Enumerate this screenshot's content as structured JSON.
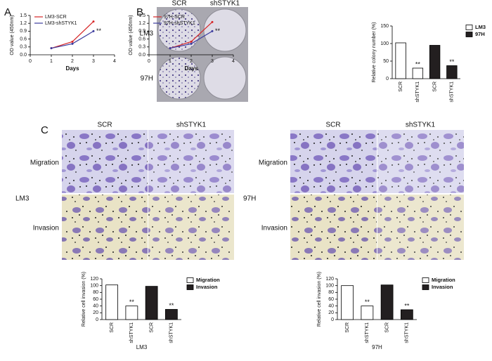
{
  "figure": {
    "panel_labels": [
      "A",
      "B",
      "C"
    ],
    "colony_columns": [
      "SCR",
      "shSTYK1"
    ],
    "colony_rows": [
      "LM3",
      "97H"
    ],
    "transwell": [
      {
        "columns": [
          "SCR",
          "shSTYK1"
        ],
        "rows": [
          "Migration",
          "Invasion"
        ],
        "cell_line": "LM3"
      },
      {
        "columns": [
          "SCR",
          "shSTYK1"
        ],
        "rows": [
          "Migration",
          "Invasion"
        ],
        "cell_line": "97H"
      }
    ]
  },
  "chart_data": [
    {
      "type": "line",
      "x": [
        1,
        2,
        3
      ],
      "xlabel": "Days",
      "ylabel": "OD value (450nm)",
      "xlim": [
        0,
        4
      ],
      "xticks": [
        0,
        1,
        2,
        3,
        4
      ],
      "ylim": [
        0,
        1.5
      ],
      "yticks": [
        {
          "value": 0,
          "label": "0.0"
        },
        0.3,
        0.6,
        0.9,
        1.2,
        1.5
      ],
      "series": [
        {
          "name": "LM3-SCR",
          "color": "#d62728",
          "values": [
            0.25,
            0.5,
            1.27
          ]
        },
        {
          "name": "LM3-shSTYK1",
          "color": "#3b3b9e",
          "values": [
            0.25,
            0.42,
            0.9
          ]
        }
      ],
      "annotations": [
        "**"
      ]
    },
    {
      "type": "line",
      "x": [
        1,
        2,
        3
      ],
      "xlabel": "Days",
      "ylabel": "OD value (450nm)",
      "xlim": [
        0,
        4
      ],
      "xticks": [
        0,
        1,
        2,
        3,
        4
      ],
      "ylim": [
        0,
        1.5
      ],
      "yticks": [
        {
          "value": 0,
          "label": "0.0"
        },
        0.3,
        0.6,
        0.9,
        1.2,
        1.5
      ],
      "series": [
        {
          "name": "97H-SCR",
          "color": "#d62728",
          "values": [
            0.25,
            0.5,
            1.25
          ]
        },
        {
          "name": "97H-shSTYK1",
          "color": "#3b3b9e",
          "values": [
            0.25,
            0.42,
            0.9
          ]
        }
      ],
      "annotations": [
        "**"
      ]
    },
    {
      "type": "bar",
      "categories": [
        "SCR",
        "shSTYK1",
        "SCR",
        "shSTYK1"
      ],
      "ylabel": "Relative colony number (%)",
      "ylim": [
        0,
        150
      ],
      "yticks": [
        0,
        50,
        100,
        150
      ],
      "series": [
        {
          "name": "LM3",
          "color": "#ffffff",
          "values": [
            102,
            30,
            null,
            null
          ]
        },
        {
          "name": "97H",
          "color": "#231f20",
          "values": [
            null,
            null,
            95,
            37
          ]
        }
      ],
      "annotations": [
        "**",
        "**"
      ]
    },
    {
      "type": "bar",
      "categories": [
        "SCR",
        "shSTYK1",
        "SCR",
        "shSTYK1"
      ],
      "ylabel": "Relative cell invasion (%)",
      "group_label": "LM3",
      "ylim": [
        0,
        120
      ],
      "yticks": [
        0,
        20,
        40,
        60,
        80,
        100,
        120
      ],
      "series": [
        {
          "name": "Migration",
          "color": "#ffffff",
          "values": [
            102,
            40,
            null,
            null
          ]
        },
        {
          "name": "Invasion",
          "color": "#231f20",
          "values": [
            null,
            null,
            98,
            30
          ]
        }
      ],
      "annotations": [
        "**",
        "**"
      ]
    },
    {
      "type": "bar",
      "categories": [
        "SCR",
        "shSTYK1",
        "SCR",
        "shSTYK1"
      ],
      "ylabel": "Relative cell invasion (%)",
      "group_label": "97H",
      "ylim": [
        0,
        120
      ],
      "yticks": [
        0,
        20,
        40,
        60,
        80,
        100,
        120
      ],
      "series": [
        {
          "name": "Migration",
          "color": "#ffffff",
          "values": [
            100,
            40,
            null,
            null
          ]
        },
        {
          "name": "Invasion",
          "color": "#231f20",
          "values": [
            null,
            null,
            102,
            29
          ]
        }
      ],
      "annotations": [
        "**",
        "**"
      ]
    }
  ]
}
